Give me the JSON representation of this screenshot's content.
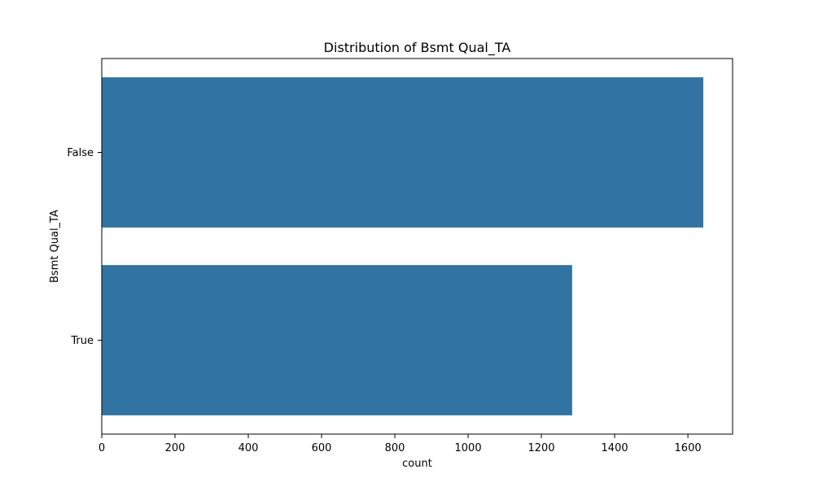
{
  "chart_data": {
    "type": "bar",
    "orientation": "horizontal",
    "title": "Distribution of Bsmt Qual_TA",
    "xlabel": "count",
    "ylabel": "Bsmt Qual_TA",
    "categories": [
      "False",
      "True"
    ],
    "values": [
      1642,
      1284
    ],
    "xlim": [
      0,
      1722
    ],
    "xticks": [
      0,
      200,
      400,
      600,
      800,
      1000,
      1200,
      1400,
      1600
    ],
    "bar_color": "#3274a1",
    "grid": false,
    "legend": "none"
  }
}
